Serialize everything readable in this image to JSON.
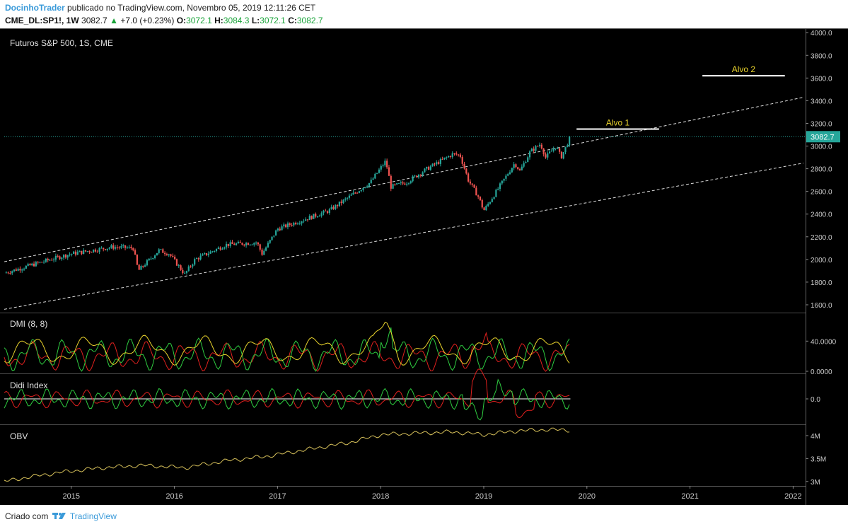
{
  "header": {
    "author": "DocinhoTrader",
    "published_text": "publicado no TradingView.com, Novembro 05, 2019 12:11:26 CET",
    "symbol": "CME_DL:SP1!, 1W",
    "last": "3082.7",
    "change": "+7.0 (+0.23%)",
    "o_label": "O:",
    "o_value": "3072.1",
    "h_label": "H:",
    "h_value": "3084.3",
    "l_label": "L:",
    "l_value": "3072.1",
    "c_label": "C:",
    "c_value": "3082.7"
  },
  "footer": {
    "created_with": "Criado com",
    "brand": "TradingView"
  },
  "colors": {
    "background": "#000000",
    "up": "#26a69a",
    "down": "#ef5350",
    "accent": "#3a9ad9",
    "dmi_plus": "#2ecc40",
    "dmi_minus": "#e0201e",
    "adx": "#e8d22c",
    "obv": "#d6c05a"
  },
  "chart_data": [
    {
      "type": "candlestick",
      "title": "Futuros S&P 500, 1S, CME",
      "y_ticks": [
        "4000.0",
        "3800.0",
        "3600.0",
        "3400.0",
        "3200.0",
        "3000.0",
        "2800.0",
        "2600.0",
        "2400.0",
        "2200.0",
        "2000.0",
        "1800.0",
        "1600.0"
      ],
      "ylim": [
        1550,
        4020
      ],
      "last_price_label": "3082.7",
      "last_price": 3082.7,
      "x_ticks": [
        "2015",
        "2016",
        "2017",
        "2018",
        "2019",
        "2020",
        "2021",
        "2022"
      ],
      "x_tick_values": [
        2015,
        2016,
        2017,
        2018,
        2019,
        2020,
        2021,
        2022
      ],
      "xlim": [
        2014.35,
        2022.1
      ],
      "price_path_t": [
        2014.35,
        2014.8,
        2015.0,
        2015.4,
        2015.6,
        2015.65,
        2015.85,
        2015.95,
        2016.1,
        2016.2,
        2016.5,
        2016.8,
        2016.85,
        2017.0,
        2017.5,
        2017.9,
        2018.05,
        2018.1,
        2018.25,
        2018.45,
        2018.7,
        2018.77,
        2018.85,
        2018.95,
        2019.0,
        2019.3,
        2019.35,
        2019.45,
        2019.55,
        2019.6,
        2019.7,
        2019.75,
        2019.84
      ],
      "price_path_v": [
        1880,
        2000,
        2050,
        2110,
        2100,
        1900,
        2080,
        2050,
        1870,
        2000,
        2130,
        2150,
        2050,
        2270,
        2430,
        2680,
        2870,
        2640,
        2680,
        2800,
        2930,
        2920,
        2700,
        2550,
        2430,
        2850,
        2780,
        2950,
        3020,
        2900,
        3000,
        2900,
        3082
      ],
      "annotations": [
        {
          "label": "Alvo 1",
          "t_start": 2019.9,
          "t_end": 2020.7,
          "value": 3150
        },
        {
          "label": "Alvo 2",
          "t_start": 2021.12,
          "t_end": 2021.92,
          "value": 3620
        }
      ],
      "trendlines": [
        {
          "style": "dashed",
          "t": [
            2014.35,
            2022.1
          ],
          "v": [
            1980,
            3430
          ]
        },
        {
          "style": "dashed",
          "t": [
            2014.35,
            2022.1
          ],
          "v": [
            1560,
            2850
          ]
        }
      ]
    },
    {
      "type": "line",
      "title": "DMI (8, 8)",
      "y_ticks": [
        "40.0000",
        "0.0000"
      ],
      "y_tick_values": [
        40,
        0
      ],
      "ylim": [
        0,
        75
      ],
      "series": [
        {
          "color": "#2ecc40",
          "style": "+DI"
        },
        {
          "color": "#e0201e",
          "style": "-DI"
        },
        {
          "color": "#e8d22c",
          "style": "ADX"
        }
      ]
    },
    {
      "type": "line",
      "title": "Didi Index",
      "y_ticks": [
        "0.0"
      ],
      "y_tick_values": [
        0
      ],
      "ylim": [
        -1,
        1
      ]
    },
    {
      "type": "line",
      "title": "OBV",
      "y_ticks": [
        "4M",
        "3.5M",
        "3M"
      ],
      "y_tick_values": [
        4,
        3.5,
        3
      ],
      "ylim": [
        2.95,
        4.2
      ],
      "obv_path_t": [
        2014.35,
        2014.6,
        2014.9,
        2015.3,
        2015.7,
        2016.1,
        2016.5,
        2016.9,
        2017.3,
        2017.7,
        2018.0,
        2018.3,
        2018.7,
        2019.0,
        2019.3,
        2019.6,
        2019.84
      ],
      "obv_path_v": [
        3.0,
        3.1,
        3.2,
        3.3,
        3.35,
        3.3,
        3.45,
        3.55,
        3.7,
        3.85,
        4.02,
        4.05,
        4.08,
        4.02,
        4.1,
        4.13,
        4.12
      ]
    }
  ]
}
